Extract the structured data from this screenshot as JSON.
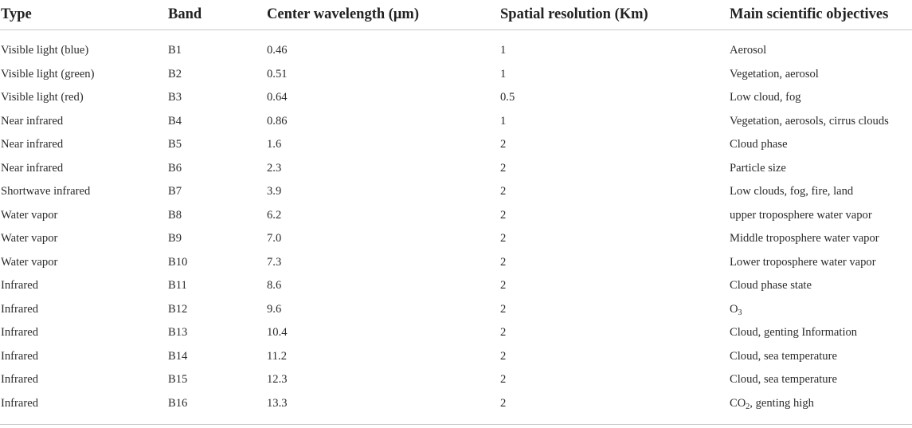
{
  "table": {
    "headers": [
      "Type",
      "Band",
      "Center wavelength (μm)",
      "Spatial resolution (Km)",
      "Main scientific objectives"
    ],
    "rows": [
      {
        "type": "Visible light (blue)",
        "band": "B1",
        "wavelength": "0.46",
        "resolution": "1",
        "objective": "Aerosol"
      },
      {
        "type": "Visible light (green)",
        "band": "B2",
        "wavelength": "0.51",
        "resolution": "1",
        "objective": "Vegetation, aerosol"
      },
      {
        "type": "Visible light (red)",
        "band": "B3",
        "wavelength": "0.64",
        "resolution": "0.5",
        "objective": "Low cloud, fog"
      },
      {
        "type": "Near infrared",
        "band": "B4",
        "wavelength": "0.86",
        "resolution": "1",
        "objective": "Vegetation, aerosols, cirrus clouds"
      },
      {
        "type": "Near infrared",
        "band": "B5",
        "wavelength": "1.6",
        "resolution": "2",
        "objective": "Cloud phase"
      },
      {
        "type": "Near infrared",
        "band": "B6",
        "wavelength": "2.3",
        "resolution": "2",
        "objective": "Particle size"
      },
      {
        "type": "Shortwave infrared",
        "band": "B7",
        "wavelength": "3.9",
        "resolution": "2",
        "objective": "Low clouds, fog, fire, land"
      },
      {
        "type": "Water vapor",
        "band": "B8",
        "wavelength": "6.2",
        "resolution": "2",
        "objective": "upper troposphere water vapor"
      },
      {
        "type": "Water vapor",
        "band": "B9",
        "wavelength": "7.0",
        "resolution": "2",
        "objective": "Middle troposphere water vapor"
      },
      {
        "type": "Water vapor",
        "band": "B10",
        "wavelength": "7.3",
        "resolution": "2",
        "objective": "Lower troposphere water vapor"
      },
      {
        "type": "Infrared",
        "band": "B11",
        "wavelength": "8.6",
        "resolution": "2",
        "objective": "Cloud phase state"
      },
      {
        "type": "Infrared",
        "band": "B12",
        "wavelength": "9.6",
        "resolution": "2",
        "objective": "O",
        "objective_sub": "3",
        "objective_after": ""
      },
      {
        "type": "Infrared",
        "band": "B13",
        "wavelength": "10.4",
        "resolution": "2",
        "objective": "Cloud, genting Information"
      },
      {
        "type": "Infrared",
        "band": "B14",
        "wavelength": "11.2",
        "resolution": "2",
        "objective": "Cloud, sea temperature"
      },
      {
        "type": "Infrared",
        "band": "B15",
        "wavelength": "12.3",
        "resolution": "2",
        "objective": "Cloud, sea temperature"
      },
      {
        "type": "Infrared",
        "band": "B16",
        "wavelength": "13.3",
        "resolution": "2",
        "objective": "CO",
        "objective_sub": "2",
        "objective_after": ", genting high"
      }
    ]
  }
}
